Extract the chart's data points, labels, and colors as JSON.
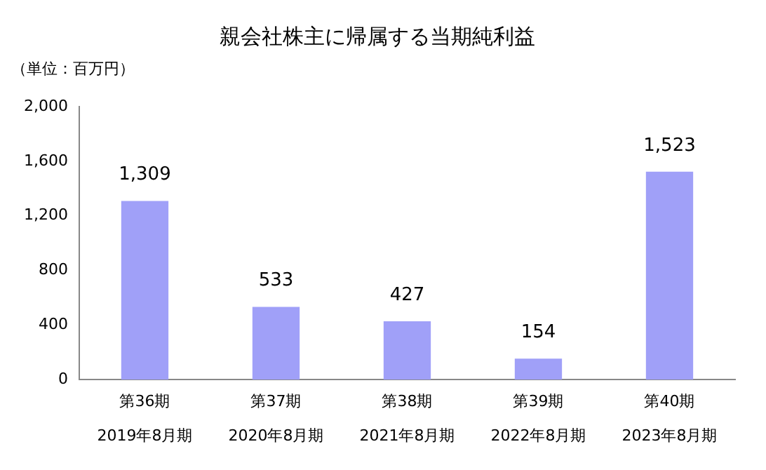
{
  "chart_data": {
    "type": "bar",
    "title": "親会社株主に帰属する当期純利益",
    "ylabel": "（単位：百万円）",
    "categories": [
      "第36期\n2019年8月期",
      "第37期\n2020年8月期",
      "第38期\n2021年8月期",
      "第39期\n2022年8月期",
      "第40期\n2023年8月期"
    ],
    "values": [
      1309,
      533,
      427,
      154,
      1523
    ],
    "value_labels": [
      "1,309",
      "533",
      "427",
      "154",
      "1,523"
    ],
    "color": "#a0a0f8",
    "ylim": [
      0,
      2000
    ],
    "yticks": [
      0,
      400,
      800,
      {
        "value": 1200,
        "label": "1,200"
      },
      {
        "value": 1600,
        "label": "1,600"
      },
      {
        "value": 2000,
        "label": "2,000"
      }
    ],
    "grid": false,
    "legend": false
  }
}
